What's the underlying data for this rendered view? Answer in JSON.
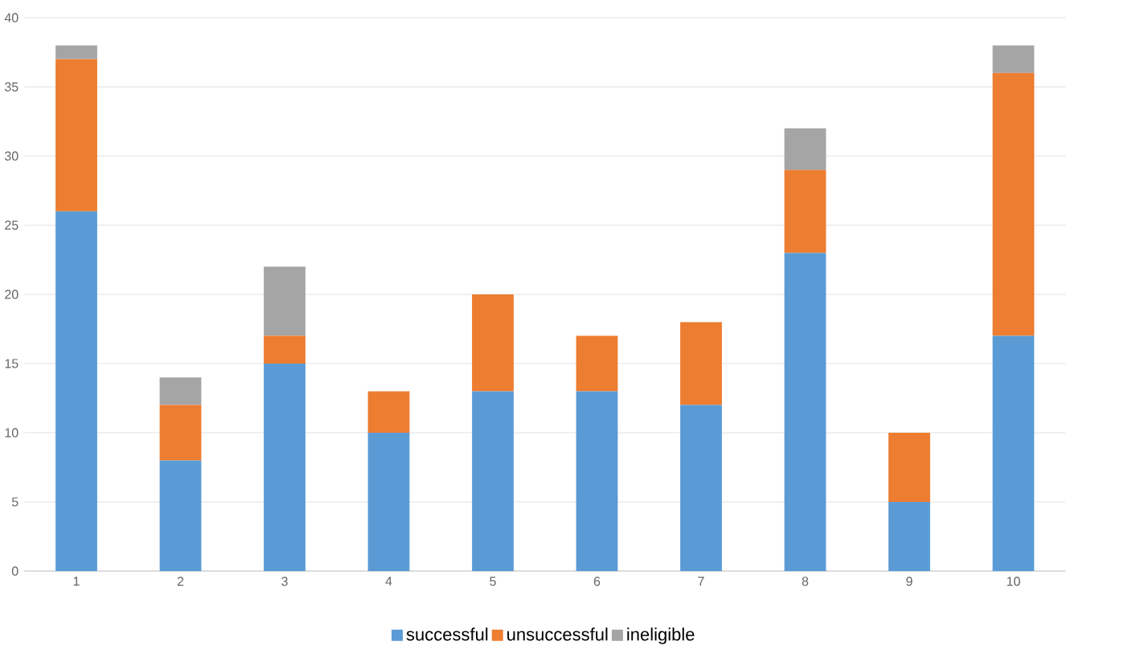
{
  "chart_data": {
    "type": "bar",
    "stacked": true,
    "categories": [
      "1",
      "2",
      "3",
      "4",
      "5",
      "6",
      "7",
      "8",
      "9",
      "10"
    ],
    "series": [
      {
        "name": "successful",
        "color": "#5b9bd5",
        "values": [
          26,
          8,
          15,
          10,
          13,
          13,
          12,
          23,
          5,
          17
        ]
      },
      {
        "name": "unsuccessful",
        "color": "#ed7d31",
        "values": [
          11,
          4,
          2,
          3,
          7,
          4,
          6,
          6,
          5,
          19
        ]
      },
      {
        "name": "ineligible",
        "color": "#a5a5a5",
        "values": [
          1,
          2,
          5,
          0,
          0,
          0,
          0,
          3,
          0,
          2
        ]
      }
    ],
    "ylim": [
      0,
      40
    ],
    "yticks": [
      0,
      5,
      10,
      15,
      20,
      25,
      30,
      35,
      40
    ],
    "grid": "y",
    "legend": "bottom"
  }
}
